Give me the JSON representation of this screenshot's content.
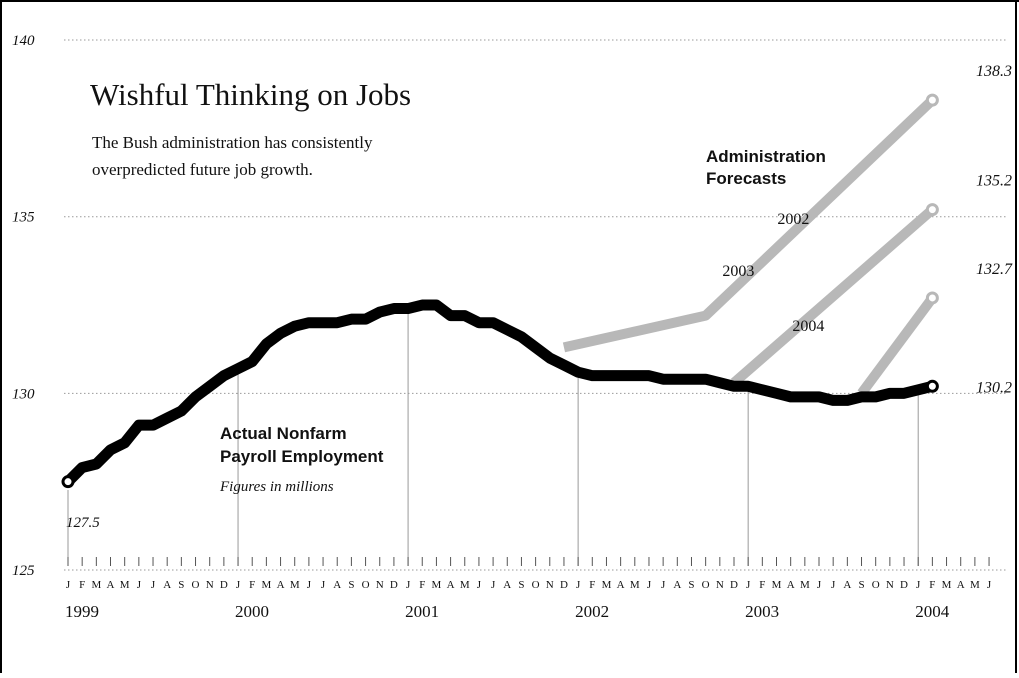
{
  "chart_data": {
    "type": "line",
    "title": "Wishful Thinking on Jobs",
    "subtitle": [
      "The Bush administration has consistently",
      "overpredicted future job growth."
    ],
    "ylim": [
      125,
      140
    ],
    "y_ticks": [
      "125",
      "130",
      "135",
      "140"
    ],
    "x_month_letters": [
      "J",
      "F",
      "M",
      "A",
      "M",
      "J",
      "J",
      "A",
      "S",
      "O",
      "N",
      "D"
    ],
    "x_year_labels": [
      "1999",
      "2000",
      "2001",
      "2002",
      "2003",
      "2004"
    ],
    "x_range_months": 66,
    "actual": {
      "label": [
        "Actual Nonfarm",
        "Payroll Employment"
      ],
      "note": "Figures in millions",
      "start_label": "127.5",
      "end_label": "130.2",
      "x": [
        0,
        1,
        2,
        3,
        4,
        5,
        6,
        7,
        8,
        9,
        10,
        11,
        12,
        13,
        14,
        15,
        16,
        17,
        18,
        19,
        20,
        21,
        22,
        23,
        24,
        25,
        26,
        27,
        28,
        29,
        30,
        31,
        32,
        33,
        34,
        35,
        36,
        37,
        38,
        39,
        40,
        41,
        42,
        43,
        44,
        45,
        46,
        47,
        48,
        49,
        50,
        51,
        52,
        53,
        54,
        55,
        56,
        57,
        58,
        59,
        60,
        61
      ],
      "values": [
        127.5,
        127.9,
        128.0,
        128.4,
        128.6,
        129.1,
        129.1,
        129.3,
        129.5,
        129.9,
        130.2,
        130.5,
        130.7,
        130.9,
        131.4,
        131.7,
        131.9,
        132.0,
        132.0,
        132.0,
        132.1,
        132.1,
        132.3,
        132.4,
        132.4,
        132.5,
        132.5,
        132.2,
        132.2,
        132.0,
        132.0,
        131.8,
        131.6,
        131.3,
        131.0,
        130.8,
        130.6,
        130.5,
        130.5,
        130.5,
        130.5,
        130.5,
        130.4,
        130.4,
        130.4,
        130.4,
        130.3,
        130.2,
        130.2,
        130.1,
        130.0,
        129.9,
        129.9,
        129.9,
        129.8,
        129.8,
        129.9,
        129.9,
        130.0,
        130.0,
        130.1,
        130.2
      ]
    },
    "forecasts_title": [
      "Administration",
      "Forecasts"
    ],
    "forecasts": [
      {
        "name": "2002",
        "x": [
          35,
          45,
          61
        ],
        "values": [
          131.3,
          132.2,
          138.3
        ],
        "end_label": "138.3"
      },
      {
        "name": "2003",
        "x": [
          47,
          61
        ],
        "values": [
          130.3,
          135.2
        ],
        "end_label": "135.2"
      },
      {
        "name": "2004",
        "x": [
          56,
          61
        ],
        "values": [
          130.0,
          132.7
        ],
        "end_label": "132.7"
      }
    ],
    "colors": {
      "actual": "#000000",
      "forecast": "#b8b8b8",
      "grid": "#9a9a9a"
    }
  }
}
